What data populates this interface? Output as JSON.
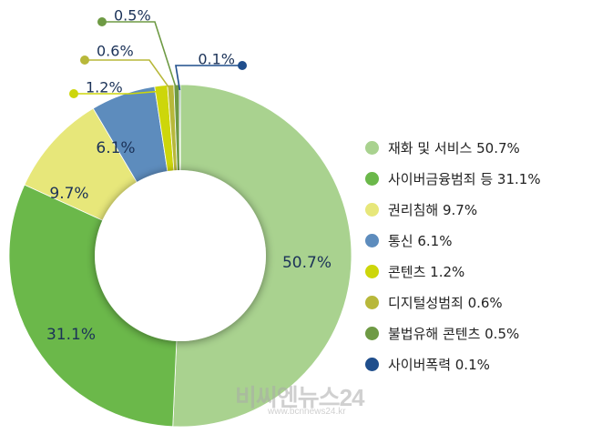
{
  "chart_data": {
    "type": "pie",
    "title": "",
    "categories": [
      "재화 및 서비스",
      "사이버금융범죄 등",
      "권리침해",
      "통신",
      "콘텐츠",
      "디지털성범죄",
      "불법유해 콘텐츠",
      "사이버폭력"
    ],
    "values": [
      50.7,
      31.1,
      9.7,
      6.1,
      1.2,
      0.6,
      0.5,
      0.1
    ],
    "value_labels": [
      "50.7%",
      "31.1%",
      "9.7%",
      "6.1%",
      "1.2%",
      "0.6%",
      "0.5%",
      "0.1%"
    ],
    "legend_labels": [
      "재화 및 서비스 50.7%",
      "사이버금융범죄 등 31.1%",
      "권리침해 9.7%",
      "통신 6.1%",
      "콘텐츠 1.2%",
      "디지털성범죄 0.6%",
      "불법유해 콘텐츠 0.5%",
      "사이버폭력 0.1%"
    ],
    "colors": [
      "#a9d28f",
      "#6bb84a",
      "#e7e77a",
      "#5d8cbd",
      "#cdd60a",
      "#b8b83a",
      "#6e9a44",
      "#1f4e8c"
    ],
    "legend_position": "right",
    "donut": true
  },
  "watermark": {
    "brand": "비씨엔뉴스24",
    "url": "www.bcnnews24.kr"
  }
}
